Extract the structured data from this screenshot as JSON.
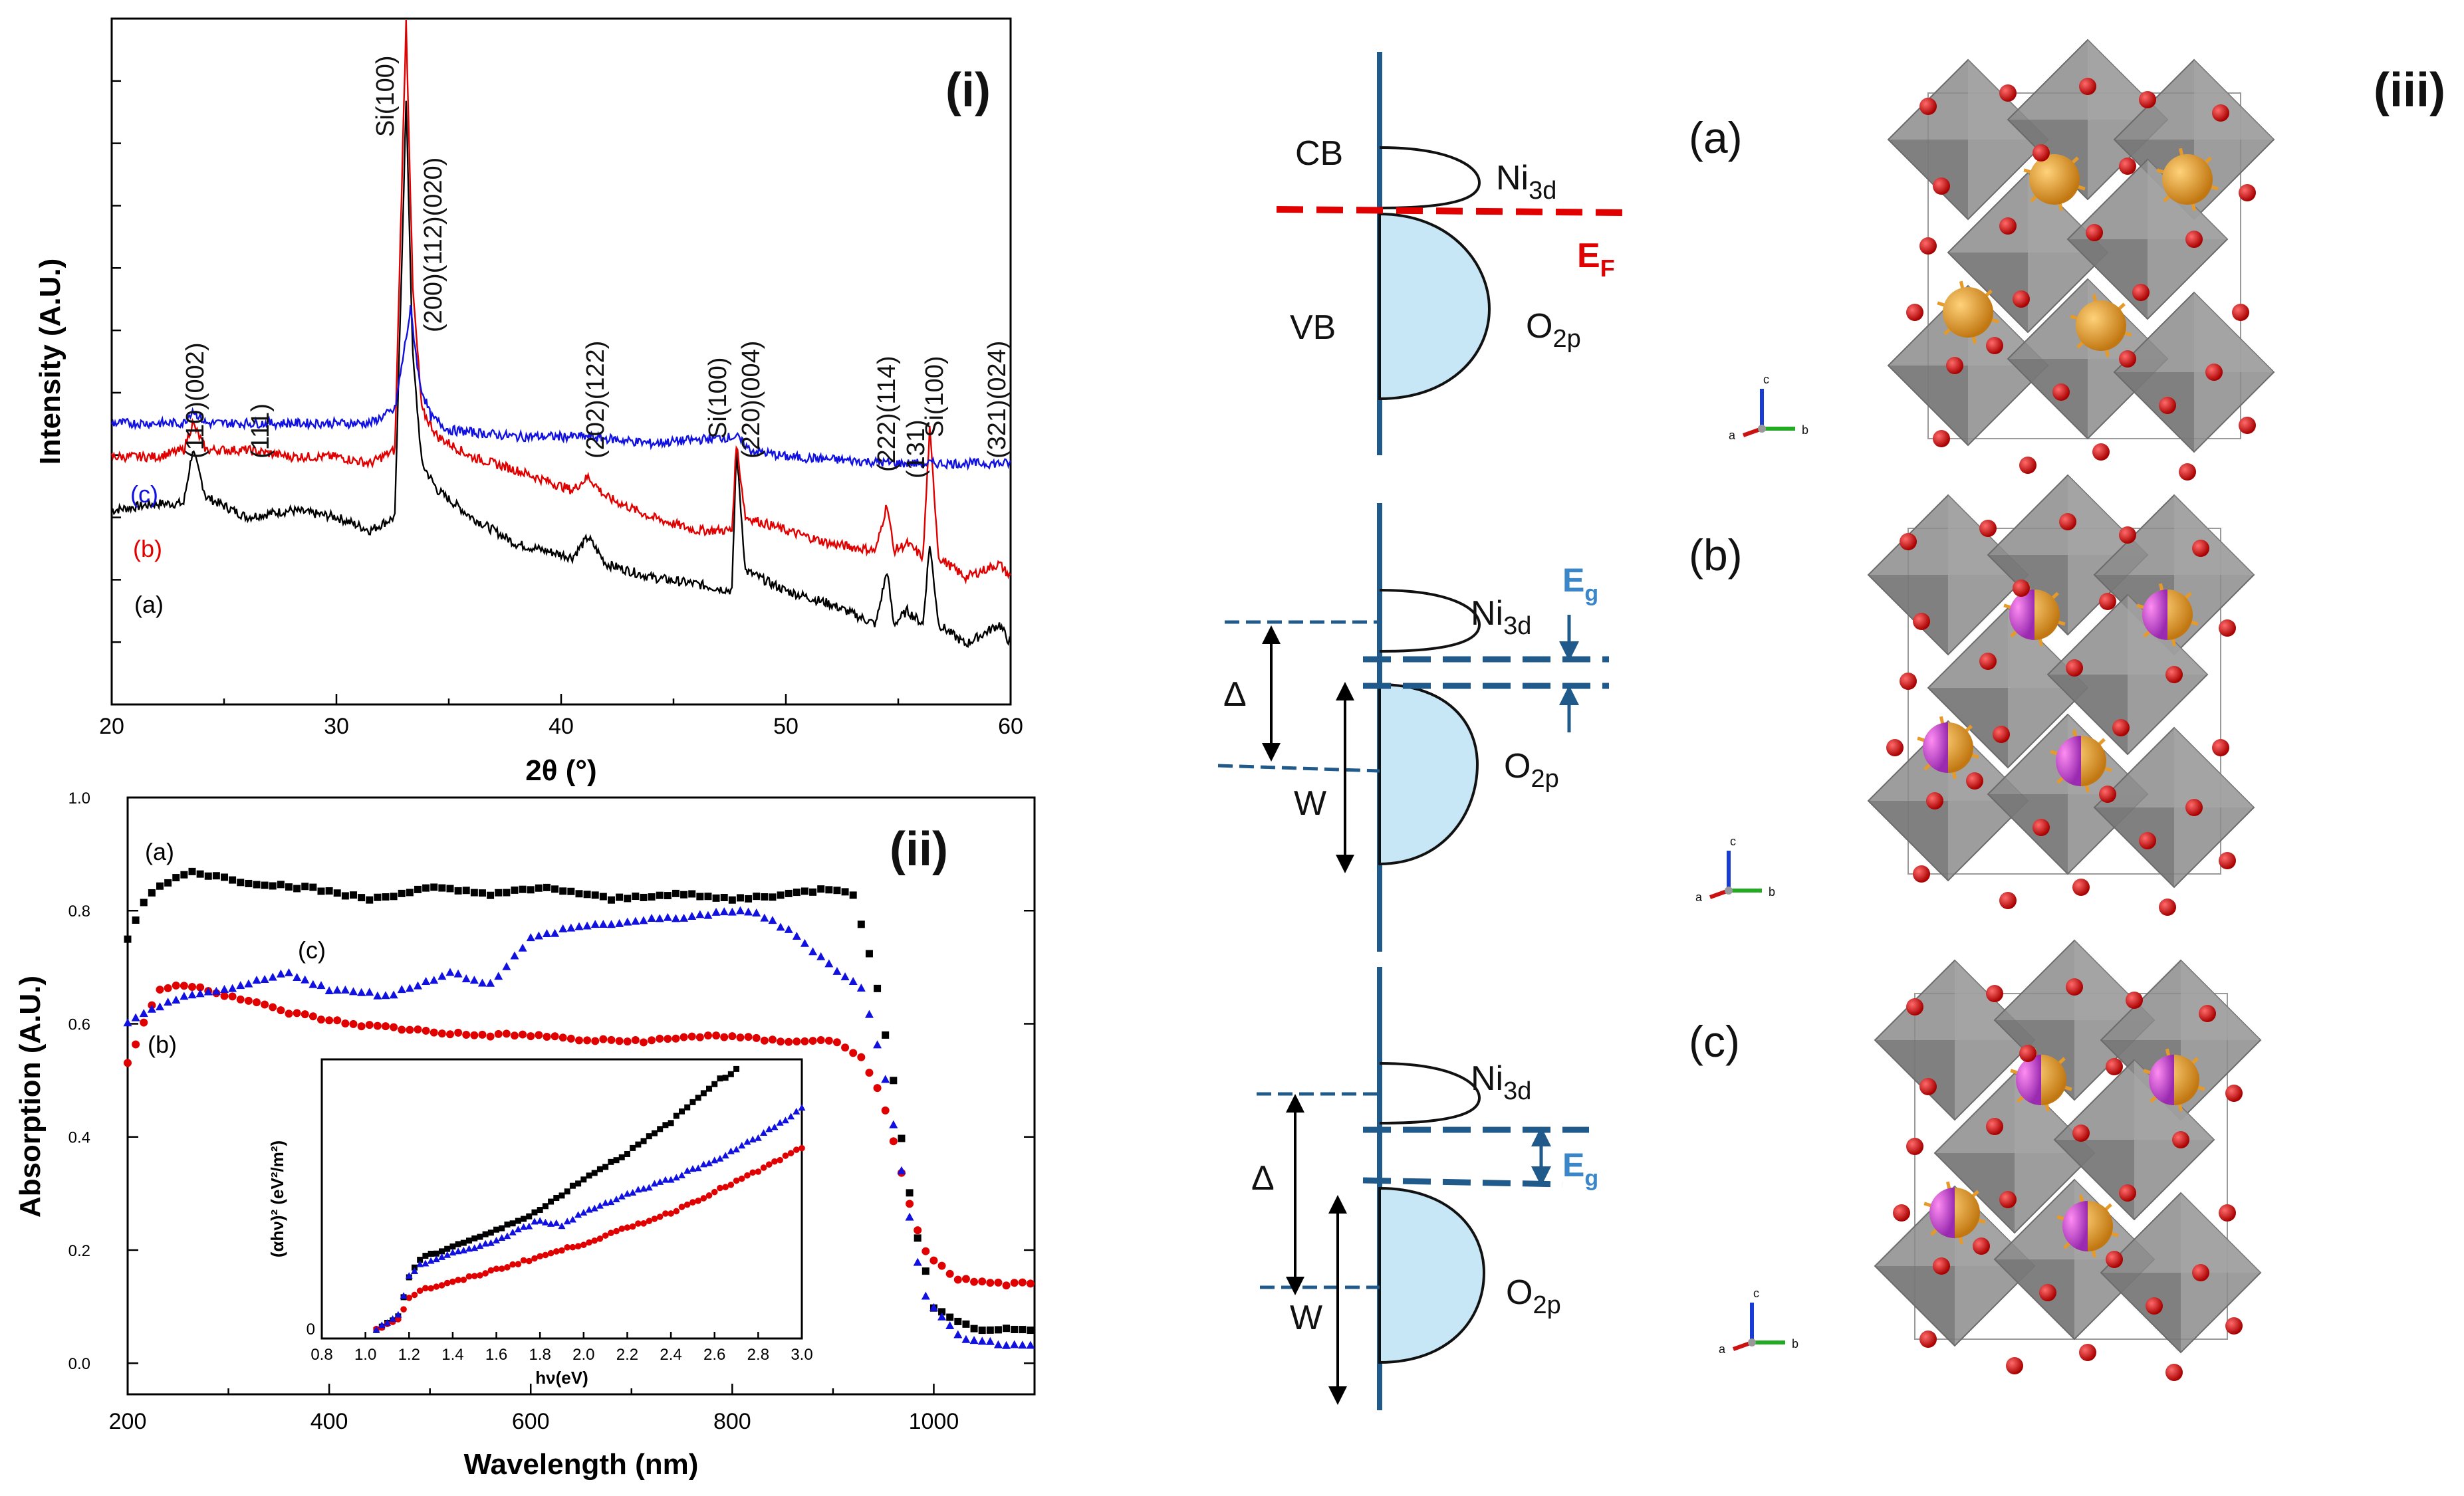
{
  "chart_data": [
    {
      "panel": "(i)",
      "type": "line",
      "xlabel": "2θ (°)",
      "ylabel": "Intensity (A.U.)",
      "xlim": [
        20,
        60
      ],
      "xticks": [
        "20",
        "30",
        "40",
        "50",
        "60"
      ],
      "series": [
        {
          "name": "(a)",
          "color": "#000000",
          "x": [
            20,
            22,
            23.2,
            23.6,
            24.2,
            26,
            28,
            30,
            31.5,
            32.6,
            33.1,
            33.4,
            33.8,
            34.5,
            36,
            38,
            40.5,
            41.2,
            42,
            44,
            46,
            47.6,
            47.8,
            48.2,
            50,
            52,
            54,
            54.5,
            54.8,
            55.4,
            56.1,
            56.4,
            56.8,
            58,
            59.5,
            60
          ],
          "y": [
            0.27,
            0.28,
            0.28,
            0.36,
            0.29,
            0.26,
            0.27,
            0.26,
            0.24,
            0.26,
            0.88,
            0.5,
            0.34,
            0.3,
            0.26,
            0.22,
            0.2,
            0.23,
            0.19,
            0.17,
            0.16,
            0.15,
            0.36,
            0.18,
            0.15,
            0.13,
            0.1,
            0.18,
            0.1,
            0.12,
            0.1,
            0.22,
            0.1,
            0.07,
            0.1,
            0.07
          ]
        },
        {
          "name": "(b)",
          "color": "#e00000",
          "x": [
            20,
            22,
            23.2,
            23.6,
            24.2,
            26,
            28,
            30,
            31.5,
            32.6,
            33.1,
            33.4,
            33.8,
            34.5,
            36,
            38,
            40.5,
            41.2,
            42,
            44,
            46,
            47.6,
            47.8,
            48.2,
            50,
            52,
            54,
            54.5,
            54.8,
            55.4,
            56.1,
            56.4,
            56.8,
            58,
            59.5,
            60
          ],
          "y": [
            0.35,
            0.35,
            0.36,
            0.4,
            0.36,
            0.36,
            0.35,
            0.35,
            0.34,
            0.36,
            1.0,
            0.6,
            0.42,
            0.38,
            0.35,
            0.33,
            0.3,
            0.32,
            0.29,
            0.26,
            0.24,
            0.24,
            0.37,
            0.26,
            0.24,
            0.22,
            0.21,
            0.28,
            0.21,
            0.22,
            0.2,
            0.39,
            0.2,
            0.17,
            0.19,
            0.17
          ]
        },
        {
          "name": "(c)",
          "color": "#1010e0",
          "x": [
            20,
            22,
            23.2,
            23.6,
            24.2,
            26,
            28,
            30,
            31.5,
            32.6,
            33.3,
            33.7,
            34.2,
            35,
            38,
            41.2,
            44,
            47.8,
            48.4,
            50,
            55,
            60
          ],
          "y": [
            0.4,
            0.4,
            0.4,
            0.42,
            0.4,
            0.4,
            0.4,
            0.4,
            0.4,
            0.42,
            0.57,
            0.46,
            0.41,
            0.39,
            0.38,
            0.38,
            0.37,
            0.38,
            0.36,
            0.35,
            0.34,
            0.34
          ]
        }
      ],
      "annotations": [
        "Si(100)",
        "(200)(112)(020)",
        "(110)(002)",
        "(111)",
        "(202)(122)",
        "Si(100)",
        "(220)(004)",
        "(222)(114)",
        "(131)",
        "Si(100)",
        "(321)(024)"
      ]
    },
    {
      "panel": "(ii)",
      "type": "scatter",
      "xlabel": "Wavelength (nm)",
      "ylabel": "Absorption (A.U.)",
      "xlim": [
        200,
        1100
      ],
      "ylim": [
        0.0,
        1.0
      ],
      "xticks": [
        "200",
        "400",
        "600",
        "800",
        "1000"
      ],
      "yticks": [
        "0.0",
        "0.2",
        "0.4",
        "0.6",
        "0.8",
        "1.0"
      ],
      "series": [
        {
          "name": "(a)",
          "color": "#000000",
          "x": [
            200,
            220,
            260,
            320,
            380,
            440,
            500,
            560,
            620,
            680,
            740,
            800,
            860,
            900,
            920,
            940,
            960,
            980,
            1000,
            1040,
            1100
          ],
          "y": [
            0.75,
            0.83,
            0.87,
            0.85,
            0.84,
            0.82,
            0.84,
            0.83,
            0.84,
            0.82,
            0.83,
            0.82,
            0.83,
            0.84,
            0.83,
            0.7,
            0.5,
            0.25,
            0.1,
            0.06,
            0.06
          ]
        },
        {
          "name": "(b)",
          "color": "#e00000",
          "x": [
            200,
            230,
            260,
            300,
            360,
            420,
            480,
            540,
            600,
            660,
            720,
            780,
            840,
            900,
            930,
            950,
            970,
            990,
            1020,
            1060,
            1100
          ],
          "y": [
            0.53,
            0.66,
            0.67,
            0.65,
            0.62,
            0.6,
            0.59,
            0.58,
            0.58,
            0.57,
            0.57,
            0.58,
            0.57,
            0.57,
            0.54,
            0.46,
            0.32,
            0.2,
            0.15,
            0.14,
            0.14
          ]
        },
        {
          "name": "(c)",
          "color": "#1010e0",
          "x": [
            200,
            240,
            300,
            360,
            400,
            460,
            520,
            560,
            600,
            640,
            700,
            760,
            820,
            860,
            900,
            930,
            950,
            970,
            990,
            1030,
            1100
          ],
          "y": [
            0.6,
            0.64,
            0.66,
            0.69,
            0.66,
            0.65,
            0.69,
            0.67,
            0.75,
            0.77,
            0.78,
            0.79,
            0.8,
            0.76,
            0.7,
            0.66,
            0.52,
            0.32,
            0.12,
            0.04,
            0.03
          ]
        }
      ],
      "inset": {
        "xlabel": "hν(eV)",
        "ylabel": "(αhν)² (eV²/m²)",
        "xlim": [
          0.8,
          3.0
        ],
        "xticks": [
          "0.8",
          "1.0",
          "1.2",
          "1.4",
          "1.6",
          "1.8",
          "2.0",
          "2.2",
          "2.4",
          "2.6",
          "2.8",
          "3.0"
        ],
        "yticks": [
          "0"
        ],
        "series": [
          {
            "name": "(a)",
            "color": "#000000",
            "x": [
              1.05,
              1.1,
              1.15,
              1.2,
              1.25,
              1.4,
              1.6,
              1.8,
              2.0,
              2.2,
              2.4,
              2.6,
              2.7
            ],
            "y": [
              0.0,
              0.02,
              0.05,
              0.2,
              0.27,
              0.32,
              0.38,
              0.46,
              0.58,
              0.68,
              0.8,
              0.95,
              1.0
            ]
          },
          {
            "name": "(b)",
            "color": "#e00000",
            "x": [
              1.05,
              1.1,
              1.15,
              1.2,
              1.25,
              1.4,
              1.6,
              1.8,
              2.0,
              2.2,
              2.4,
              2.6,
              2.8,
              3.0
            ],
            "y": [
              0.0,
              0.02,
              0.04,
              0.12,
              0.15,
              0.18,
              0.23,
              0.28,
              0.33,
              0.39,
              0.45,
              0.53,
              0.61,
              0.7
            ]
          },
          {
            "name": "(c)",
            "color": "#1010e0",
            "x": [
              1.05,
              1.1,
              1.15,
              1.2,
              1.25,
              1.4,
              1.6,
              1.8,
              1.9,
              2.0,
              2.2,
              2.4,
              2.6,
              2.8,
              3.0
            ],
            "y": [
              0.0,
              0.02,
              0.05,
              0.2,
              0.25,
              0.29,
              0.34,
              0.42,
              0.4,
              0.45,
              0.52,
              0.58,
              0.65,
              0.74,
              0.85
            ]
          }
        ]
      }
    }
  ],
  "figure": {
    "panel_i": "(i)",
    "panel_ii": "(ii)",
    "panel_iii": "(iii)",
    "xrd_labels": {
      "si1": "Si(100)",
      "p200": "(200)(112)(020)",
      "p110": "(110)(002)",
      "p111": "(111)",
      "p202": "(202)(122)",
      "si2": "Si(100)",
      "p220": "(220)(004)",
      "p222": "(222)(114)",
      "p131": "(131)",
      "si3": "Si(100)",
      "p321": "(321)(024)"
    },
    "series_tags": {
      "a": "(a)",
      "b": "(b)",
      "c": "(c)"
    },
    "band": {
      "cb": "CB",
      "vb": "VB",
      "ni": "Ni",
      "ni_sub": "3d",
      "o": "O",
      "o_sub": "2p",
      "ef": "E",
      "ef_sub": "F",
      "eg": "E",
      "eg_sub": "g",
      "delta": "Δ",
      "w": "W"
    },
    "struct_labels": {
      "a": "(a)",
      "b": "(b)",
      "c": "(c)"
    },
    "axes_triad": {
      "a": "a",
      "b": "b",
      "c": "c"
    },
    "colors": {
      "a": "#000000",
      "b": "#e00000",
      "c": "#1010e0",
      "band_line": "#1f5a8a",
      "band_fill": "#c7e6f6",
      "ef": "#e00000",
      "eg": "#3a86c8",
      "octa": "#8c8c8c",
      "oxygen": "#cc1111",
      "cation": "#e59a2a",
      "cation2": "#c23bd6"
    }
  }
}
